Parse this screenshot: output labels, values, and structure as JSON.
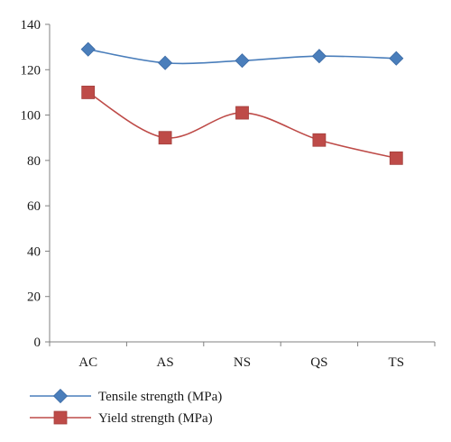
{
  "chart_data": {
    "type": "line",
    "categories": [
      "AC",
      "AS",
      "NS",
      "QS",
      "TS"
    ],
    "series": [
      {
        "name": "Tensile strength (MPa)",
        "values": [
          129,
          123,
          124,
          126,
          125
        ],
        "color": "#4a7ebb",
        "marker": "diamond"
      },
      {
        "name": "Yield strength (MPa)",
        "values": [
          110,
          90,
          101,
          89,
          81
        ],
        "color": "#be4b48",
        "marker": "square"
      }
    ],
    "ylim": [
      0,
      140
    ],
    "yticks": [
      0,
      20,
      40,
      60,
      80,
      100,
      120,
      140
    ],
    "grid": false,
    "legend_position": "bottom-left",
    "smooth": true
  }
}
